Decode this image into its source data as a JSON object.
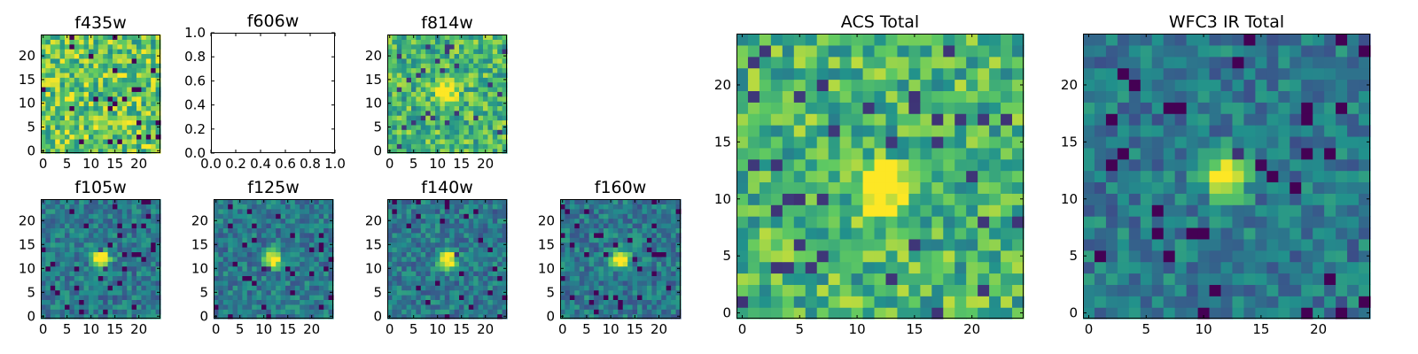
{
  "chart_data": [
    {
      "type": "heatmap",
      "title": "f435w",
      "grid_size": 25,
      "xticks": [
        "0",
        "5",
        "10",
        "15",
        "20"
      ],
      "yticks": [
        "0",
        "5",
        "10",
        "15",
        "20"
      ],
      "pattern": "noise_high",
      "source": null
    },
    {
      "type": "heatmap",
      "title": "f606w",
      "empty": true,
      "xlim": [
        0,
        1
      ],
      "ylim": [
        0,
        1
      ],
      "xticks": [
        "0.0",
        "0.2",
        "0.4",
        "0.6",
        "0.8",
        "1.0"
      ],
      "yticks": [
        "0.0",
        "0.2",
        "0.4",
        "0.6",
        "0.8",
        "1.0"
      ]
    },
    {
      "type": "heatmap",
      "title": "f814w",
      "grid_size": 25,
      "xticks": [
        "0",
        "5",
        "10",
        "15",
        "20"
      ],
      "yticks": [
        "0",
        "5",
        "10",
        "15",
        "20"
      ],
      "pattern": "noise_source",
      "source": {
        "x": 12,
        "y": 12
      }
    },
    {
      "type": "heatmap",
      "title": "f105w",
      "grid_size": 25,
      "xticks": [
        "0",
        "5",
        "10",
        "15",
        "20"
      ],
      "yticks": [
        "0",
        "5",
        "10",
        "15",
        "20"
      ],
      "pattern": "source",
      "source": {
        "x": 12,
        "y": 12
      }
    },
    {
      "type": "heatmap",
      "title": "f125w",
      "grid_size": 25,
      "xticks": [
        "0",
        "5",
        "10",
        "15",
        "20"
      ],
      "yticks": [
        "0",
        "5",
        "10",
        "15",
        "20"
      ],
      "pattern": "source",
      "source": {
        "x": 12,
        "y": 12
      }
    },
    {
      "type": "heatmap",
      "title": "f140w",
      "grid_size": 25,
      "xticks": [
        "0",
        "5",
        "10",
        "15",
        "20"
      ],
      "yticks": [
        "0",
        "5",
        "10",
        "15",
        "20"
      ],
      "pattern": "source",
      "source": {
        "x": 12,
        "y": 12
      }
    },
    {
      "type": "heatmap",
      "title": "f160w",
      "grid_size": 25,
      "xticks": [
        "0",
        "5",
        "10",
        "15",
        "20"
      ],
      "yticks": [
        "0",
        "5",
        "10",
        "15",
        "20"
      ],
      "pattern": "source",
      "source": {
        "x": 12,
        "y": 12
      }
    },
    {
      "type": "heatmap",
      "title": "ACS Total",
      "grid_size": 25,
      "xticks": [
        "0",
        "5",
        "10",
        "15",
        "20"
      ],
      "yticks": [
        "0",
        "5",
        "10",
        "15",
        "20"
      ],
      "pattern": "noise_source",
      "source": {
        "x": 12,
        "y": 11
      }
    },
    {
      "type": "heatmap",
      "title": "WFC3 IR Total",
      "grid_size": 25,
      "xticks": [
        "0",
        "5",
        "10",
        "15",
        "20"
      ],
      "yticks": [
        "0",
        "5",
        "10",
        "15",
        "20"
      ],
      "pattern": "source",
      "source": {
        "x": 12,
        "y": 12
      }
    }
  ],
  "colormap": [
    "#440154",
    "#3b528b",
    "#21918c",
    "#5ec962",
    "#fde725"
  ]
}
